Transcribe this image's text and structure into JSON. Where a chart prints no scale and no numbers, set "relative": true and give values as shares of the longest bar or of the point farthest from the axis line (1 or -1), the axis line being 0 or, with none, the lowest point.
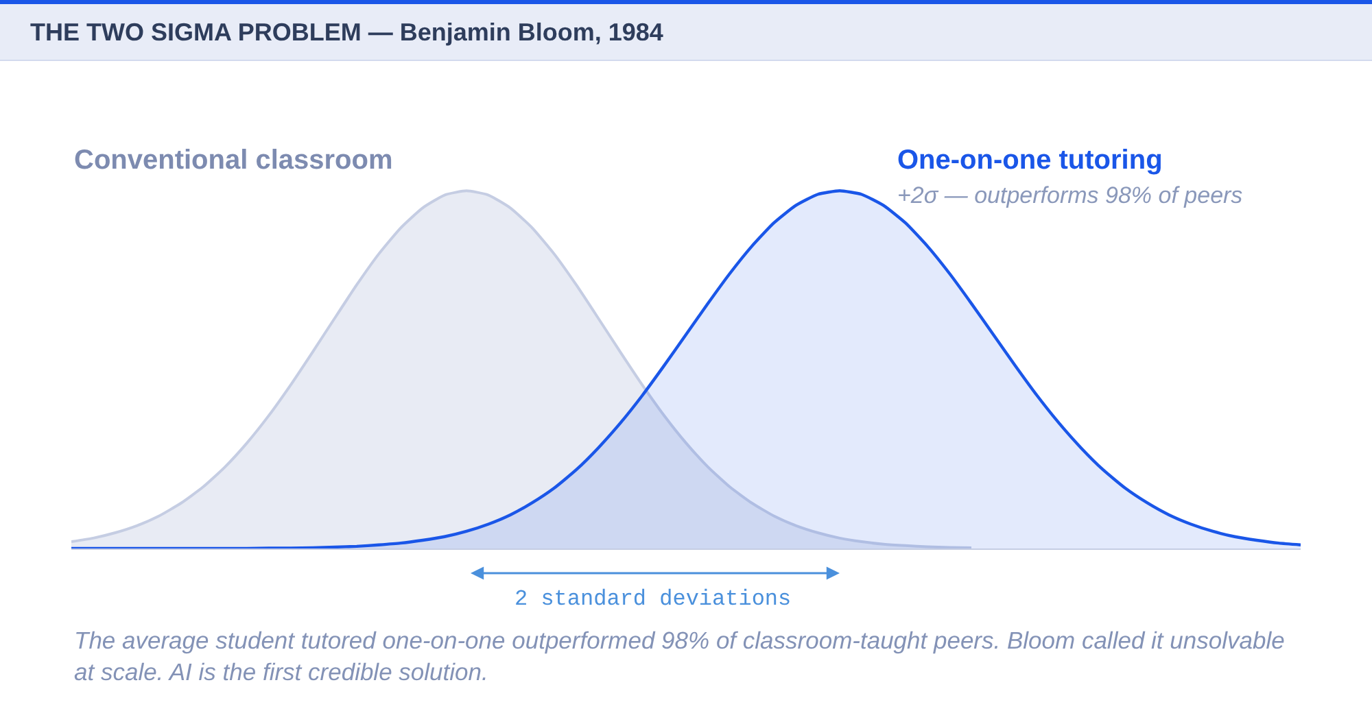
{
  "chart_data": {
    "type": "area",
    "relative": true,
    "title": "THE TWO SIGMA PROBLEM — Benjamin Bloom, 1984",
    "categories": [
      null,
      null,
      null,
      null,
      null,
      null,
      null,
      null,
      null,
      null,
      null,
      null,
      null,
      null,
      null,
      null,
      null,
      null,
      null,
      null,
      null,
      null,
      null,
      null,
      null,
      null,
      null,
      null,
      null,
      null,
      null,
      null,
      null,
      null,
      null,
      null,
      null,
      null,
      null,
      null,
      null,
      null,
      null,
      null,
      null,
      null,
      null,
      null,
      null,
      null,
      null,
      null,
      null,
      null,
      null,
      null,
      null
    ],
    "series": [
      {
        "name": "Conventional classroom",
        "color": "#c5cde3",
        "values": [
          0.019,
          0.029,
          0.044,
          0.064,
          0.091,
          0.127,
          0.172,
          0.228,
          0.295,
          0.372,
          0.458,
          0.55,
          0.644,
          0.737,
          0.823,
          0.896,
          0.952,
          0.988,
          1,
          0.988,
          0.952,
          0.896,
          0.823,
          0.737,
          0.644,
          0.55,
          0.458,
          0.372,
          0.295,
          0.228,
          0.172,
          0.127,
          0.091,
          0.064,
          0.044,
          0.029,
          0.019,
          0.012,
          0.008,
          0.005,
          0.003,
          0.002,
          null,
          null,
          null,
          null,
          null,
          null,
          null,
          null,
          null,
          null,
          null,
          null,
          null,
          null,
          null
        ]
      },
      {
        "name": "One-on-one tutoring",
        "color": "#1a56e8",
        "values": [
          0,
          0,
          0,
          0,
          0,
          0,
          0,
          0,
          0,
          0.001,
          0.001,
          0.002,
          0.004,
          0.006,
          0.01,
          0.015,
          0.023,
          0.033,
          0.048,
          0.068,
          0.094,
          0.128,
          0.169,
          0.22,
          0.281,
          0.35,
          0.427,
          0.511,
          0.598,
          0.685,
          0.769,
          0.845,
          0.91,
          0.959,
          0.99,
          1,
          0.99,
          0.959,
          0.91,
          0.845,
          0.769,
          0.685,
          0.598,
          0.511,
          0.427,
          0.35,
          0.281,
          0.22,
          0.169,
          0.128,
          0.094,
          0.068,
          0.048,
          0.033,
          0.023,
          0.015,
          0.01
        ]
      }
    ],
    "annotations": [
      "+2σ — outperforms 98% of peers",
      "2 standard deviations",
      "The average student tutored one-on-one outperformed 98% of classroom-taught peers. Bloom called it unsolvable at scale. AI is the first credible solution."
    ]
  }
}
